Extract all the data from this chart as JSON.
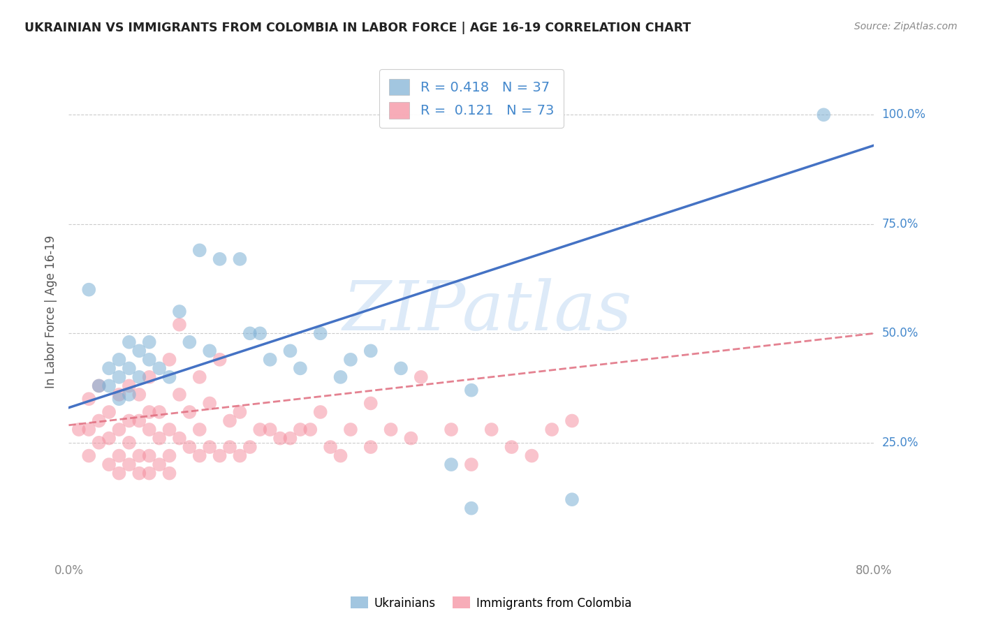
{
  "title": "UKRAINIAN VS IMMIGRANTS FROM COLOMBIA IN LABOR FORCE | AGE 16-19 CORRELATION CHART",
  "source": "Source: ZipAtlas.com",
  "ylabel": "In Labor Force | Age 16-19",
  "xlim": [
    0.0,
    0.8
  ],
  "ylim": [
    -0.02,
    1.12
  ],
  "blue_color": "#7BAFD4",
  "pink_color": "#F4899A",
  "line_blue": "#4472C4",
  "line_pink": "#E06C7E",
  "R_blue": 0.418,
  "N_blue": 37,
  "R_pink": 0.121,
  "N_pink": 73,
  "watermark": "ZIPatlas",
  "watermark_color": "#AACCEE",
  "blue_line_x0": 0.0,
  "blue_line_y0": 0.33,
  "blue_line_x1": 0.8,
  "blue_line_y1": 0.93,
  "pink_line_x0": 0.0,
  "pink_line_y0": 0.29,
  "pink_line_x1": 0.8,
  "pink_line_y1": 0.5,
  "blue_scatter_x": [
    0.02,
    0.03,
    0.04,
    0.05,
    0.05,
    0.06,
    0.06,
    0.07,
    0.07,
    0.08,
    0.09,
    0.1,
    0.11,
    0.12,
    0.14,
    0.15,
    0.17,
    0.18,
    0.19,
    0.2,
    0.22,
    0.23,
    0.25,
    0.27,
    0.28,
    0.3,
    0.33,
    0.38,
    0.4,
    0.13,
    0.08,
    0.06,
    0.05,
    0.04,
    0.75,
    0.5,
    0.4
  ],
  "blue_scatter_y": [
    0.6,
    0.38,
    0.42,
    0.4,
    0.44,
    0.36,
    0.42,
    0.4,
    0.46,
    0.44,
    0.42,
    0.4,
    0.55,
    0.48,
    0.46,
    0.67,
    0.67,
    0.5,
    0.5,
    0.44,
    0.46,
    0.42,
    0.5,
    0.4,
    0.44,
    0.46,
    0.42,
    0.2,
    0.37,
    0.69,
    0.48,
    0.48,
    0.35,
    0.38,
    1.0,
    0.12,
    0.1
  ],
  "pink_scatter_x": [
    0.01,
    0.02,
    0.02,
    0.02,
    0.03,
    0.03,
    0.03,
    0.04,
    0.04,
    0.04,
    0.05,
    0.05,
    0.05,
    0.05,
    0.06,
    0.06,
    0.06,
    0.06,
    0.07,
    0.07,
    0.07,
    0.07,
    0.08,
    0.08,
    0.08,
    0.08,
    0.08,
    0.09,
    0.09,
    0.09,
    0.1,
    0.1,
    0.1,
    0.1,
    0.11,
    0.11,
    0.11,
    0.12,
    0.12,
    0.13,
    0.13,
    0.13,
    0.14,
    0.14,
    0.15,
    0.15,
    0.16,
    0.16,
    0.17,
    0.17,
    0.18,
    0.19,
    0.2,
    0.21,
    0.22,
    0.23,
    0.24,
    0.25,
    0.26,
    0.27,
    0.28,
    0.3,
    0.3,
    0.32,
    0.34,
    0.35,
    0.38,
    0.4,
    0.42,
    0.44,
    0.46,
    0.48,
    0.5
  ],
  "pink_scatter_y": [
    0.28,
    0.22,
    0.28,
    0.35,
    0.25,
    0.3,
    0.38,
    0.2,
    0.26,
    0.32,
    0.18,
    0.22,
    0.28,
    0.36,
    0.2,
    0.25,
    0.3,
    0.38,
    0.18,
    0.22,
    0.3,
    0.36,
    0.18,
    0.22,
    0.28,
    0.32,
    0.4,
    0.2,
    0.26,
    0.32,
    0.18,
    0.22,
    0.28,
    0.44,
    0.26,
    0.36,
    0.52,
    0.24,
    0.32,
    0.22,
    0.28,
    0.4,
    0.24,
    0.34,
    0.22,
    0.44,
    0.24,
    0.3,
    0.22,
    0.32,
    0.24,
    0.28,
    0.28,
    0.26,
    0.26,
    0.28,
    0.28,
    0.32,
    0.24,
    0.22,
    0.28,
    0.24,
    0.34,
    0.28,
    0.26,
    0.4,
    0.28,
    0.2,
    0.28,
    0.24,
    0.22,
    0.28,
    0.3
  ]
}
